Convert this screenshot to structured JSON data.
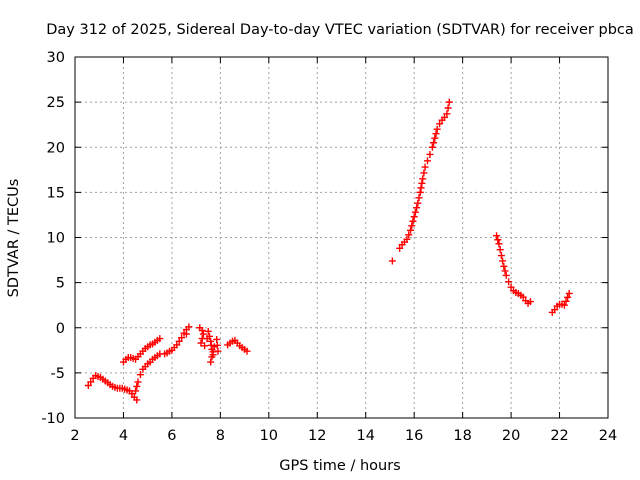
{
  "chart_data": {
    "type": "scatter",
    "title": "Day 312 of 2025, Sidereal Day-to-day VTEC variation (SDTVAR) for receiver pbca",
    "xlabel": "GPS time / hours",
    "ylabel": "SDTVAR / TECUs",
    "xlim": [
      2,
      24
    ],
    "ylim": [
      -10,
      30
    ],
    "xticks": [
      "2",
      "4",
      "6",
      "8",
      "10",
      "12",
      "14",
      "16",
      "18",
      "20",
      "22",
      "24"
    ],
    "yticks": [
      "-10",
      "-5",
      "0",
      "5",
      "10",
      "15",
      "20",
      "25",
      "30"
    ],
    "grid": true,
    "marker": "plus",
    "color": "#ff0000",
    "series": [
      {
        "name": "pbca",
        "segments": [
          [
            [
              2.55,
              -6.4
            ],
            [
              2.65,
              -6.0
            ],
            [
              2.75,
              -5.6
            ],
            [
              2.85,
              -5.3
            ],
            [
              2.95,
              -5.4
            ],
            [
              3.05,
              -5.5
            ],
            [
              3.15,
              -5.7
            ],
            [
              3.25,
              -5.9
            ],
            [
              3.35,
              -6.1
            ],
            [
              3.45,
              -6.3
            ],
            [
              3.55,
              -6.5
            ],
            [
              3.65,
              -6.6
            ],
            [
              3.75,
              -6.7
            ],
            [
              3.85,
              -6.7
            ],
            [
              3.95,
              -6.7
            ],
            [
              4.05,
              -6.8
            ],
            [
              4.15,
              -6.9
            ],
            [
              4.25,
              -7.0
            ],
            [
              4.35,
              -7.3
            ],
            [
              4.45,
              -7.7
            ],
            [
              4.55,
              -8.0
            ]
          ],
          [
            [
              4.5,
              -7.0
            ],
            [
              4.6,
              -6.0
            ],
            [
              4.7,
              -5.2
            ],
            [
              4.8,
              -4.6
            ],
            [
              4.9,
              -4.3
            ],
            [
              5.0,
              -4.0
            ],
            [
              5.1,
              -3.8
            ],
            [
              5.2,
              -3.5
            ],
            [
              5.3,
              -3.3
            ],
            [
              5.4,
              -3.1
            ],
            [
              5.5,
              -2.9
            ]
          ],
          [
            [
              4.0,
              -3.8
            ],
            [
              4.1,
              -3.5
            ],
            [
              4.2,
              -3.3
            ],
            [
              4.3,
              -3.3
            ],
            [
              4.4,
              -3.4
            ],
            [
              4.5,
              -3.5
            ],
            [
              4.6,
              -3.2
            ],
            [
              4.7,
              -2.9
            ],
            [
              4.8,
              -2.6
            ],
            [
              4.9,
              -2.3
            ],
            [
              5.0,
              -2.1
            ],
            [
              5.1,
              -1.9
            ],
            [
              5.2,
              -1.8
            ],
            [
              5.3,
              -1.6
            ],
            [
              5.4,
              -1.4
            ],
            [
              5.5,
              -1.2
            ]
          ],
          [
            [
              5.7,
              -2.9
            ],
            [
              5.8,
              -2.8
            ],
            [
              5.9,
              -2.6
            ],
            [
              6.0,
              -2.5
            ],
            [
              6.1,
              -2.2
            ],
            [
              6.2,
              -1.9
            ],
            [
              6.3,
              -1.5
            ],
            [
              6.4,
              -1.1
            ],
            [
              6.5,
              -0.6
            ],
            [
              6.6,
              -0.2
            ],
            [
              6.7,
              0.1
            ],
            [
              6.6,
              -0.7
            ]
          ],
          [
            [
              7.15,
              0.0
            ],
            [
              7.25,
              -0.3
            ],
            [
              7.3,
              -0.7
            ],
            [
              7.2,
              -1.7
            ],
            [
              7.35,
              -2.0
            ],
            [
              7.45,
              -1.2
            ],
            [
              7.5,
              -0.4
            ],
            [
              7.6,
              -1.5
            ],
            [
              7.65,
              -2.4
            ],
            [
              7.7,
              -3.0
            ],
            [
              7.6,
              -3.8
            ],
            [
              7.75,
              -2.1
            ],
            [
              7.85,
              -1.3
            ],
            [
              7.9,
              -2.6
            ]
          ],
          [
            [
              8.3,
              -1.9
            ],
            [
              8.4,
              -1.7
            ],
            [
              8.5,
              -1.5
            ],
            [
              8.6,
              -1.4
            ],
            [
              8.7,
              -1.7
            ],
            [
              8.8,
              -2.0
            ],
            [
              8.9,
              -2.2
            ],
            [
              9.0,
              -2.4
            ],
            [
              9.1,
              -2.6
            ]
          ],
          [
            [
              15.1,
              7.4
            ]
          ],
          [
            [
              15.4,
              8.8
            ],
            [
              15.5,
              9.2
            ],
            [
              15.6,
              9.5
            ],
            [
              15.7,
              9.8
            ],
            [
              15.85,
              10.8
            ],
            [
              15.95,
              11.8
            ],
            [
              16.05,
              12.8
            ],
            [
              16.15,
              13.8
            ],
            [
              16.25,
              15.0
            ],
            [
              16.35,
              16.5
            ],
            [
              16.45,
              17.8
            ],
            [
              16.55,
              18.5
            ],
            [
              16.65,
              19.2
            ],
            [
              16.75,
              20.0
            ],
            [
              16.85,
              21.0
            ],
            [
              16.95,
              22.0
            ],
            [
              17.05,
              22.6
            ],
            [
              17.15,
              23.0
            ],
            [
              17.25,
              23.3
            ],
            [
              17.35,
              23.7
            ],
            [
              17.45,
              25.0
            ]
          ],
          [
            [
              19.4,
              10.2
            ],
            [
              19.5,
              9.3
            ],
            [
              19.6,
              8.0
            ],
            [
              19.7,
              6.8
            ],
            [
              19.8,
              5.8
            ],
            [
              19.9,
              5.1
            ],
            [
              20.0,
              4.5
            ],
            [
              20.1,
              4.1
            ],
            [
              20.2,
              3.9
            ],
            [
              20.3,
              3.8
            ],
            [
              20.4,
              3.6
            ],
            [
              20.5,
              3.4
            ],
            [
              20.6,
              3.0
            ],
            [
              20.7,
              2.7
            ],
            [
              20.8,
              2.9
            ]
          ],
          [
            [
              21.7,
              1.7
            ],
            [
              21.8,
              2.0
            ],
            [
              21.9,
              2.4
            ],
            [
              22.0,
              2.6
            ],
            [
              22.1,
              2.6
            ],
            [
              22.2,
              2.5
            ],
            [
              22.4,
              3.8
            ]
          ]
        ]
      }
    ]
  }
}
